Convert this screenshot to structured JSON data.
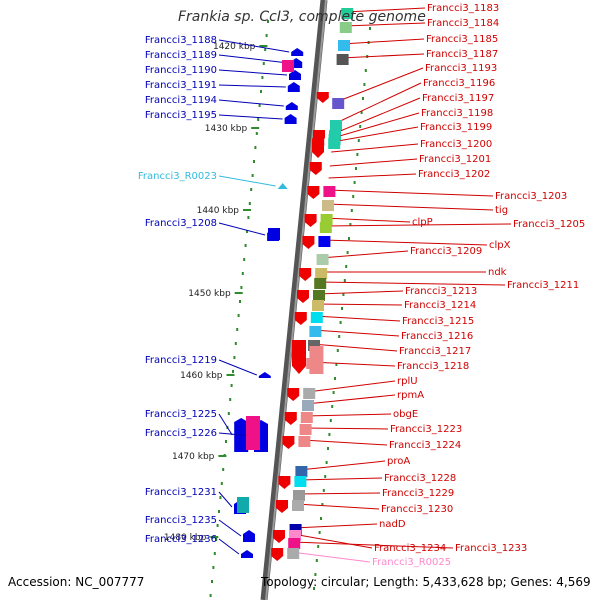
{
  "title": "Frankia sp. CcI3, complete genome",
  "footer": {
    "accession": "Accession: NC_007777",
    "stats": "Topology: circular; Length: 5,433,628 bp; Genes: 4,569"
  },
  "colors": {
    "left_label": "#0000b4",
    "right_label": "#d00000",
    "rna_label": "#33bbdd",
    "pseudo_label": "#ff88cc",
    "axis_dots": "#2e8b2e"
  },
  "kbp_ticks": [
    "1420 kbp",
    "1430 kbp",
    "1440 kbp",
    "1450 kbp",
    "1460 kbp",
    "1470 kbp",
    "1480 kbp"
  ],
  "left_labels": [
    "Francci3_1188",
    "Francci3_1189",
    "Francci3_1190",
    "Francci3_1191",
    "Francci3_1194",
    "Francci3_1195",
    "Francci3_R0023",
    "Francci3_1208",
    "Francci3_1219",
    "Francci3_1225",
    "Francci3_1226",
    "Francci3_1231",
    "Francci3_1235",
    "Francci3_1236"
  ],
  "right_labels": [
    "Francci3_1183",
    "Francci3_1184",
    "Francci3_1185",
    "Francci3_1187",
    "Francci3_1193",
    "Francci3_1196",
    "Francci3_1197",
    "Francci3_1198",
    "Francci3_1199",
    "Francci3_1200",
    "Francci3_1201",
    "Francci3_1202",
    "Francci3_1203",
    "tig",
    "clpP",
    "Francci3_1205",
    "clpX",
    "Francci3_1209",
    "ndk",
    "Francci3_1211",
    "Francci3_1213",
    "Francci3_1214",
    "Francci3_1215",
    "Francci3_1216",
    "Francci3_1217",
    "Francci3_1218",
    "rplU",
    "rpmA",
    "obgE",
    "Francci3_1223",
    "Francci3_1224",
    "proA",
    "Francci3_1228",
    "Francci3_1229",
    "Francci3_1230",
    "nadD",
    "Francci3_1234",
    "Francci3_1233",
    "Francci3_R0025"
  ]
}
